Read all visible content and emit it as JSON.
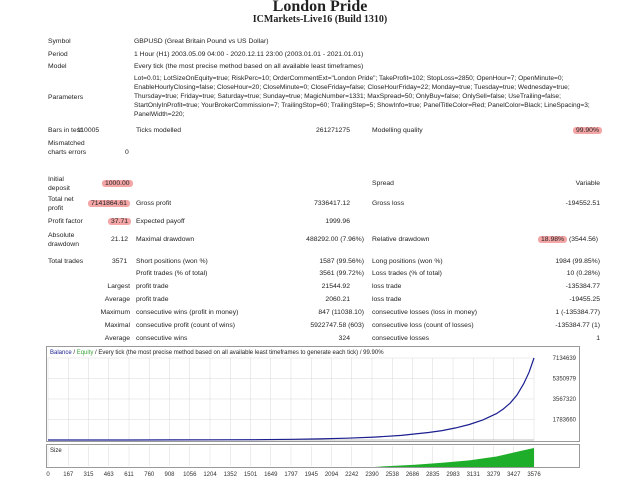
{
  "report": {
    "title": "London Pride",
    "subtitle": "ICMarkets-Live16 (Build 1310)"
  },
  "info": {
    "symbol_label": "Symbol",
    "symbol": "GBPUSD (Great Britain Pound vs US Dollar)",
    "period_label": "Period",
    "period": "1 Hour (H1) 2003.05.09 04:00 - 2020.12.11 23:00 (2003.01.01 - 2021.01.01)",
    "model_label": "Model",
    "model": "Every tick (the most precise method based on all available least timeframes)",
    "parameters_label": "Parameters",
    "parameters": "Lot=0.01; LotSizeOnEquity=true; RiskPerc=10; OrderCommentExt=\"London Pride\"; TakeProfit=102; StopLoss=2850; OpenHour=7; OpenMinute=0; EnableHourlyClosing=false; CloseHour=20; CloseMinute=0; CloseFriday=false; CloseHourFriday=22; Monday=true; Tuesday=true; Wednesday=true; Thursday=true; Friday=true; Saturday=true; Sunday=true; MagicNumber=1331; MaxSpread=50; OnlyBuy=false; OnlySell=false; UseTrailing=false; StartOnlyInProfit=true; YourBrokerCommission=7; TrailingStop=60; TrailingStep=5; ShowInfo=true; PanelTitleColor=Red; PanelColor=Black; LineSpacing=3; PanelWidth=220;"
  },
  "stats": {
    "bars_label": "Bars in test",
    "bars": "110005",
    "ticks_label": "Ticks modelled",
    "ticks": "261271275",
    "quality_label": "Modelling quality",
    "quality": "99.90%",
    "mismatched_label": "Mismatched charts errors",
    "mismatched": "0",
    "initial_deposit_label": "Initial deposit",
    "initial_deposit": "1000.00",
    "spread_label": "Spread",
    "spread": "Variable",
    "net_profit_label": "Total net profit",
    "net_profit": "7141864.61",
    "gross_profit_label": "Gross profit",
    "gross_profit": "7336417.12",
    "gross_loss_label": "Gross loss",
    "gross_loss": "-194552.51",
    "profit_factor_label": "Profit factor",
    "profit_factor": "37.71",
    "expected_payoff_label": "Expected payoff",
    "expected_payoff": "1999.96",
    "abs_dd_label": "Absolute drawdown",
    "abs_dd": "21.12",
    "max_dd_label": "Maximal drawdown",
    "max_dd": "488292.00 (7.96%)",
    "rel_dd_label": "Relative drawdown",
    "rel_dd_pct": "18.98%",
    "rel_dd_val": "(3544.56)",
    "total_trades_label": "Total trades",
    "total_trades": "3571",
    "short_label": "Short positions (won %)",
    "short": "1587 (99.56%)",
    "long_label": "Long positions (won %)",
    "long": "1984 (99.85%)",
    "profit_trades_label": "Profit trades (% of total)",
    "profit_trades": "3561 (99.72%)",
    "loss_trades_label": "Loss trades (% of total)",
    "loss_trades": "10 (0.28%)",
    "largest_label": "Largest",
    "largest_profit_label": "profit trade",
    "largest_profit": "21544.92",
    "largest_loss_label": "loss trade",
    "largest_loss": "-135384.77",
    "average_label": "Average",
    "average_profit_label": "profit trade",
    "average_profit": "2060.21",
    "average_loss_label": "loss trade",
    "average_loss": "-19455.25",
    "maximum_label": "Maximum",
    "max_wins_label": "consecutive wins (profit in money)",
    "max_wins": "847 (11038.10)",
    "max_losses_label": "consecutive losses (loss in money)",
    "max_losses": "1 (-135384.77)",
    "maximal_label": "Maximal",
    "maximal_profit_label": "consecutive profit (count of wins)",
    "maximal_profit": "5922747.58 (603)",
    "maximal_loss_label": "consecutive loss (count of losses)",
    "maximal_loss": "-135384.77 (1)",
    "avg_consec_label": "Average",
    "avg_consec_wins_label": "consecutive wins",
    "avg_consec_wins": "324",
    "avg_consec_losses_label": "consecutive losses",
    "avg_consec_losses": "1"
  },
  "chart_data": {
    "type": "line",
    "title": "Balance / Equity / Every tick (the most precise method based on all available least timeframes to generate each tick) / 99.90%",
    "legend": {
      "balance": "Balance",
      "equity": "Equity",
      "rest": " / Every tick (the most precise method based on all available least timeframes to generate each tick) / 99.90%"
    },
    "y_ticks": [
      "7134639",
      "5350979",
      "3567320",
      "1783660"
    ],
    "ylim": [
      0,
      7134639
    ],
    "x_ticks": [
      "0",
      "167",
      "315",
      "463",
      "611",
      "760",
      "908",
      "1056",
      "1204",
      "1352",
      "1501",
      "1649",
      "1797",
      "1945",
      "2094",
      "2242",
      "2390",
      "2538",
      "2686",
      "2835",
      "2983",
      "3131",
      "3279",
      "3427",
      "3576"
    ],
    "xlim": [
      0,
      3576
    ],
    "x": [
      0,
      300,
      600,
      900,
      1200,
      1500,
      1800,
      2000,
      2200,
      2400,
      2600,
      2800,
      2900,
      3000,
      3100,
      3200,
      3300,
      3350,
      3400,
      3450,
      3500,
      3540,
      3576
    ],
    "balance": [
      1000,
      2000,
      4000,
      8000,
      15000,
      30000,
      60000,
      100000,
      160000,
      250000,
      400000,
      650000,
      820000,
      1050000,
      1350000,
      1750000,
      2300000,
      2700000,
      3200000,
      3900000,
      4900000,
      5900000,
      7134639
    ],
    "size_label": "Size",
    "size_series": {
      "x": [
        0,
        2400,
        2500,
        2700,
        2900,
        3100,
        3300,
        3450,
        3576
      ],
      "values": [
        0,
        0,
        0.05,
        0.12,
        0.22,
        0.35,
        0.55,
        0.8,
        1.0
      ]
    },
    "colors": {
      "balance": "#1b1f8f",
      "equity": "#3aa63a",
      "size": "#1fae2a",
      "grid": "#d9d9d9",
      "zero_line": "#808080"
    }
  }
}
